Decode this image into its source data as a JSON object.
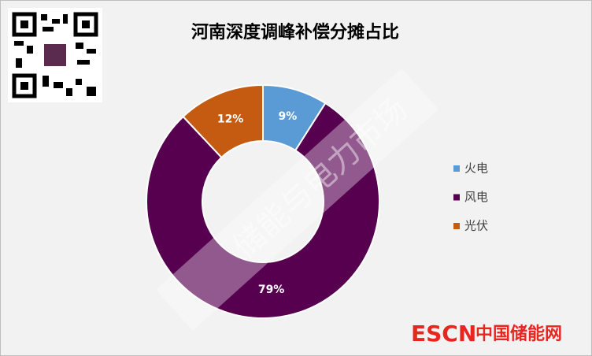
{
  "chart_data": {
    "type": "donut",
    "title": "河南深度调峰补偿分摊占比",
    "categories": [
      "火电",
      "风电",
      "光伏"
    ],
    "values": [
      9,
      79,
      12
    ],
    "value_labels": [
      "9%",
      "79%",
      "12%"
    ],
    "colors": [
      "#5b9bd5",
      "#570050",
      "#c55a11"
    ],
    "legend": "right",
    "annotations": [
      "储能与电力市场",
      "ESCN",
      "中国储能网"
    ]
  }
}
